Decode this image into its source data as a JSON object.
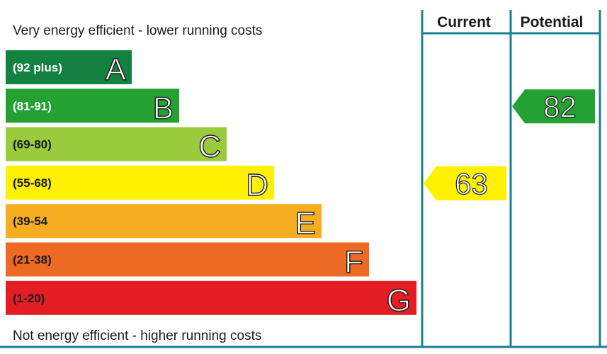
{
  "chart_data": {
    "type": "bar",
    "title": "",
    "top_caption": "Very energy efficient - lower running costs",
    "bottom_caption": "Not energy efficient - higher running costs",
    "columns": [
      "Current",
      "Potential"
    ],
    "bands": [
      {
        "letter": "A",
        "range": "(92 plus)",
        "color": "#138140",
        "text_color": "#ffffff"
      },
      {
        "letter": "B",
        "range": "(81-91)",
        "color": "#23a232",
        "text_color": "#ffffff"
      },
      {
        "letter": "C",
        "range": "(69-80)",
        "color": "#9acb3c",
        "text_color": "#1a1a1a"
      },
      {
        "letter": "D",
        "range": "(55-68)",
        "color": "#fff100",
        "text_color": "#1a1a1a"
      },
      {
        "letter": "E",
        "range": "(39-54",
        "color": "#f6ad22",
        "text_color": "#1a1a1a"
      },
      {
        "letter": "F",
        "range": "(21-38)",
        "color": "#ec6a24",
        "text_color": "#1a1a1a"
      },
      {
        "letter": "G",
        "range": "(1-20)",
        "color": "#e31d23",
        "text_color": "#1a1a1a"
      }
    ],
    "scores": [
      {
        "column": "Current",
        "value": 63,
        "label": "63",
        "band": "D",
        "color": "#fff100"
      },
      {
        "column": "Potential",
        "value": 82,
        "label": "82",
        "band": "B",
        "color": "#23a232"
      }
    ],
    "frame_color": "#1a7f8e"
  }
}
